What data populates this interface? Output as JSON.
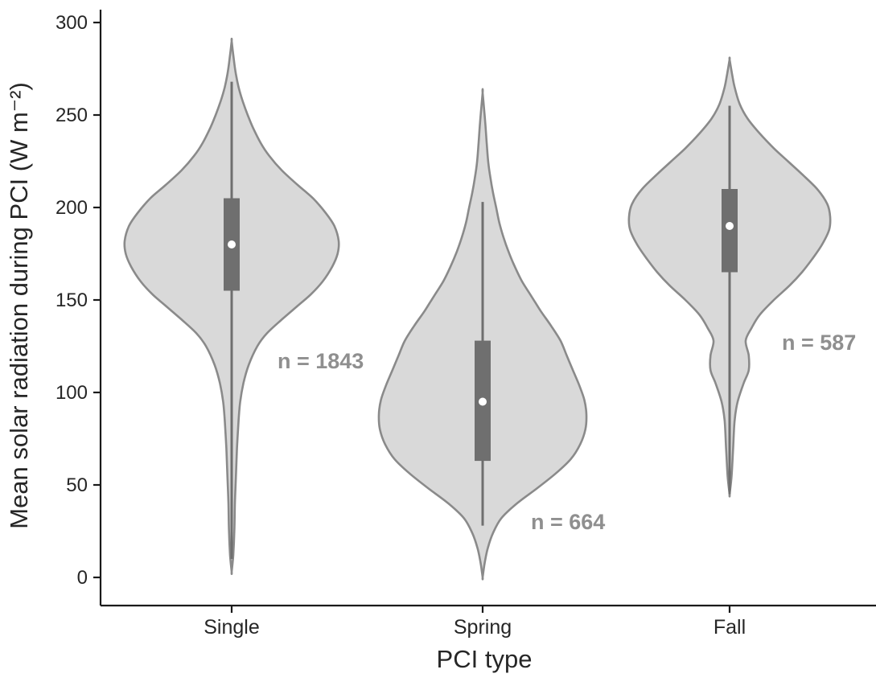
{
  "figure": {
    "background": "#ffffff"
  },
  "chart_data": {
    "type": "violin",
    "title": "",
    "xlabel": "PCI type",
    "ylabel": "Mean solar radiation during PCI (W m⁻²)",
    "ylim": [
      0,
      300
    ],
    "yticks": [
      0,
      50,
      100,
      150,
      200,
      250,
      300
    ],
    "categories": [
      "Single",
      "Spring",
      "Fall"
    ],
    "grid": false,
    "legend": false,
    "colors": {
      "violin_fill": "#d9d9d9",
      "violin_stroke": "#8a8a8a",
      "box_fill": "#6f6f6f",
      "whisker": "#6f6f6f",
      "median_dot": "#ffffff",
      "axis": "#1a1a1a",
      "annotation": "#8f8f8f"
    },
    "series": [
      {
        "name": "Single",
        "n": 1843,
        "annotation": "n = 1843",
        "median": 180,
        "q1": 155,
        "q3": 205,
        "whisker_low": 10,
        "whisker_high": 268,
        "min": 3,
        "max": 290,
        "density": [
          [
            3,
            0
          ],
          [
            12,
            0.015
          ],
          [
            25,
            0.025
          ],
          [
            40,
            0.03
          ],
          [
            55,
            0.04
          ],
          [
            70,
            0.05
          ],
          [
            85,
            0.065
          ],
          [
            95,
            0.08
          ],
          [
            105,
            0.11
          ],
          [
            115,
            0.16
          ],
          [
            125,
            0.24
          ],
          [
            132,
            0.33
          ],
          [
            140,
            0.48
          ],
          [
            147,
            0.62
          ],
          [
            153,
            0.74
          ],
          [
            160,
            0.85
          ],
          [
            168,
            0.94
          ],
          [
            175,
            0.99
          ],
          [
            182,
            1.0
          ],
          [
            190,
            0.96
          ],
          [
            197,
            0.88
          ],
          [
            205,
            0.76
          ],
          [
            212,
            0.62
          ],
          [
            220,
            0.47
          ],
          [
            228,
            0.35
          ],
          [
            235,
            0.27
          ],
          [
            243,
            0.2
          ],
          [
            250,
            0.15
          ],
          [
            258,
            0.1
          ],
          [
            265,
            0.065
          ],
          [
            272,
            0.04
          ],
          [
            280,
            0.02
          ],
          [
            290,
            0
          ]
        ]
      },
      {
        "name": "Spring",
        "n": 664,
        "annotation": "n = 664",
        "median": 95,
        "q1": 63,
        "q3": 128,
        "whisker_low": 28,
        "whisker_high": 203,
        "min": 0,
        "max": 262,
        "density": [
          [
            0,
            0
          ],
          [
            8,
            0.02
          ],
          [
            16,
            0.05
          ],
          [
            24,
            0.1
          ],
          [
            32,
            0.18
          ],
          [
            40,
            0.33
          ],
          [
            48,
            0.52
          ],
          [
            56,
            0.7
          ],
          [
            64,
            0.85
          ],
          [
            72,
            0.94
          ],
          [
            80,
            0.99
          ],
          [
            88,
            1.0
          ],
          [
            96,
            0.98
          ],
          [
            104,
            0.93
          ],
          [
            112,
            0.87
          ],
          [
            120,
            0.81
          ],
          [
            128,
            0.75
          ],
          [
            136,
            0.66
          ],
          [
            144,
            0.56
          ],
          [
            152,
            0.47
          ],
          [
            160,
            0.38
          ],
          [
            168,
            0.31
          ],
          [
            176,
            0.25
          ],
          [
            184,
            0.2
          ],
          [
            192,
            0.16
          ],
          [
            200,
            0.13
          ],
          [
            208,
            0.1
          ],
          [
            216,
            0.075
          ],
          [
            224,
            0.055
          ],
          [
            234,
            0.04
          ],
          [
            246,
            0.025
          ],
          [
            262,
            0
          ]
        ]
      },
      {
        "name": "Fall",
        "n": 587,
        "annotation": "n = 587",
        "median": 190,
        "q1": 165,
        "q3": 210,
        "whisker_low": 45,
        "whisker_high": 255,
        "min": 45,
        "max": 280,
        "density": [
          [
            45,
            0
          ],
          [
            55,
            0.02
          ],
          [
            70,
            0.035
          ],
          [
            85,
            0.05
          ],
          [
            95,
            0.08
          ],
          [
            105,
            0.14
          ],
          [
            112,
            0.19
          ],
          [
            120,
            0.19
          ],
          [
            128,
            0.16
          ],
          [
            135,
            0.22
          ],
          [
            142,
            0.3
          ],
          [
            150,
            0.44
          ],
          [
            158,
            0.6
          ],
          [
            165,
            0.72
          ],
          [
            172,
            0.82
          ],
          [
            180,
            0.92
          ],
          [
            188,
            0.99
          ],
          [
            195,
            1.0
          ],
          [
            202,
            0.97
          ],
          [
            210,
            0.87
          ],
          [
            218,
            0.72
          ],
          [
            225,
            0.58
          ],
          [
            232,
            0.44
          ],
          [
            240,
            0.3
          ],
          [
            248,
            0.18
          ],
          [
            256,
            0.1
          ],
          [
            265,
            0.05
          ],
          [
            272,
            0.025
          ],
          [
            280,
            0
          ]
        ]
      }
    ],
    "annotations": [
      {
        "text": "n = 1843",
        "category_index": 0,
        "dx": 57,
        "value": 117
      },
      {
        "text": "n = 664",
        "category_index": 1,
        "dx": 60,
        "value": 30
      },
      {
        "text": "n = 587",
        "category_index": 2,
        "dx": 65,
        "value": 127
      }
    ]
  }
}
